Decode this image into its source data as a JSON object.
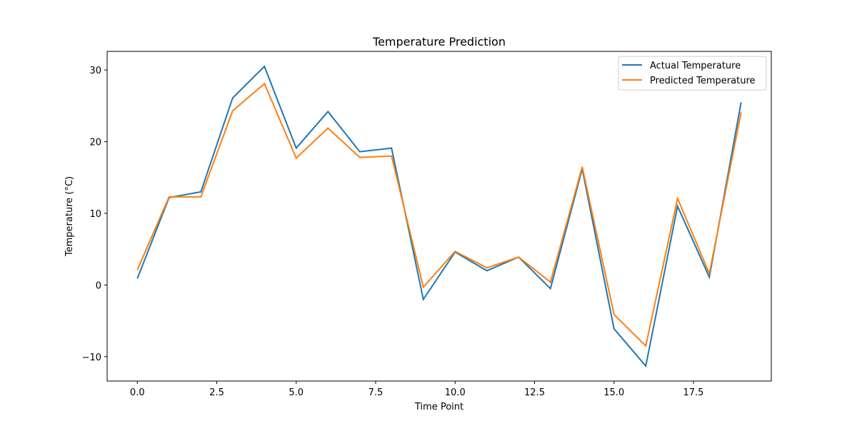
{
  "chart_data": {
    "type": "line",
    "title": "Temperature Prediction",
    "xlabel": "Time Point",
    "ylabel": "Temperature (°C)",
    "x": [
      0,
      1,
      2,
      3,
      4,
      5,
      6,
      7,
      8,
      9,
      10,
      11,
      12,
      13,
      14,
      15,
      16,
      17,
      18,
      19
    ],
    "xlim": [
      -0.95,
      19.95
    ],
    "ylim": [
      -13.4,
      32.6
    ],
    "xticks": [
      0.0,
      2.5,
      5.0,
      7.5,
      10.0,
      12.5,
      15.0,
      17.5
    ],
    "xtick_labels": [
      "0.0",
      "2.5",
      "5.0",
      "7.5",
      "10.0",
      "12.5",
      "15.0",
      "17.5"
    ],
    "yticks": [
      -10,
      0,
      10,
      20,
      30
    ],
    "ytick_labels": [
      "−10",
      "0",
      "10",
      "20",
      "30"
    ],
    "grid": false,
    "legend_position": "top-right",
    "series": [
      {
        "name": "Actual Temperature",
        "color": "#1f77b4",
        "values": [
          0.9,
          12.2,
          13.0,
          26.1,
          30.5,
          19.1,
          24.2,
          18.6,
          19.1,
          -2.0,
          4.6,
          2.0,
          3.9,
          -0.5,
          16.2,
          -6.1,
          -11.3,
          11.0,
          1.1,
          25.5
        ]
      },
      {
        "name": "Predicted Temperature",
        "color": "#ff7f0e",
        "values": [
          2.1,
          12.3,
          12.3,
          24.3,
          28.1,
          17.7,
          21.9,
          17.8,
          18.0,
          -0.3,
          4.7,
          2.4,
          3.9,
          0.4,
          16.5,
          -4.1,
          -8.5,
          12.1,
          1.6,
          24.1
        ]
      }
    ]
  }
}
